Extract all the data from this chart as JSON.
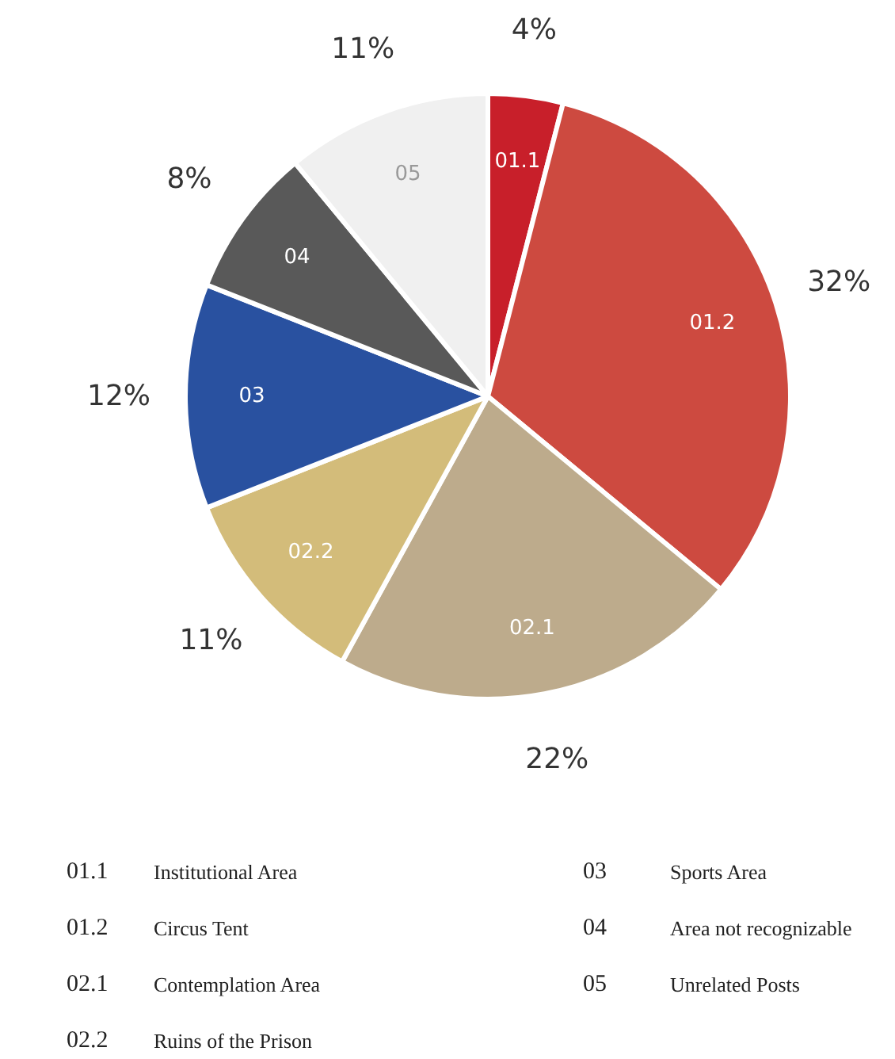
{
  "chart_data": {
    "type": "pie",
    "categories": [
      "01.1",
      "01.2",
      "02.1",
      "02.2",
      "03",
      "04",
      "05"
    ],
    "values": [
      4,
      32,
      22,
      11,
      12,
      8,
      11
    ],
    "value_labels": [
      "4%",
      "32%",
      "22%",
      "11%",
      "12%",
      "8%",
      "11%"
    ],
    "colors": [
      "#c81f2a",
      "#cd4a40",
      "#bdab8c",
      "#d3bc7a",
      "#2951a0",
      "#595959",
      "#f0f0f0"
    ],
    "annotations": [
      "Institutional Area",
      "Circus Tent",
      "Contemplation Area",
      "Ruins of the Prison",
      "Sports Area",
      "Area not recognizable",
      "Unrelated Posts"
    ]
  }
}
